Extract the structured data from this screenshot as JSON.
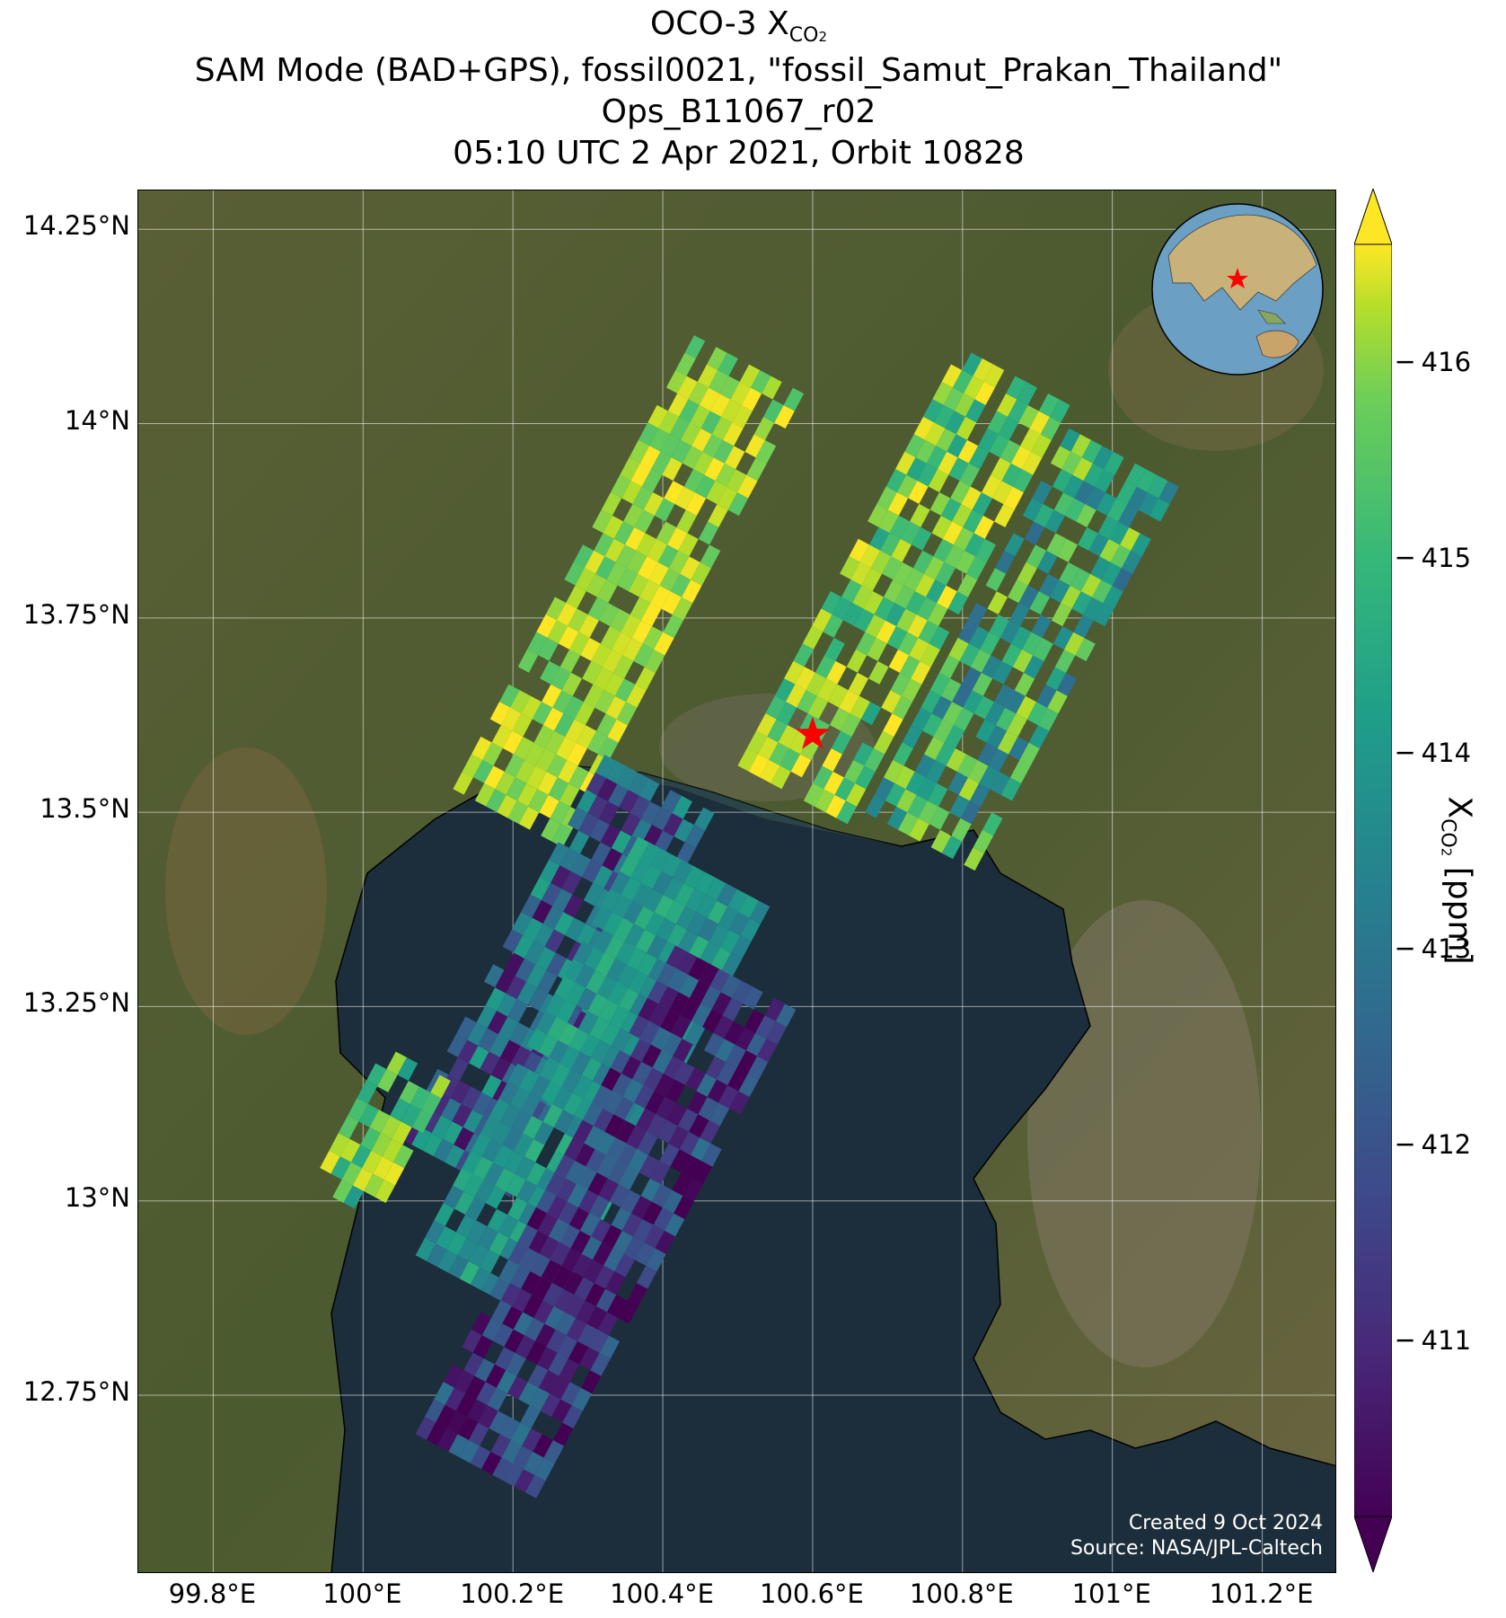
{
  "title": {
    "line1_prefix": "OCO-3 X",
    "line1_sub": "CO",
    "line1_sub2": "2",
    "line2": "SAM Mode (BAD+GPS), fossil0021, \"fossil_Samut_Prakan_Thailand\"",
    "line3": "Ops_B11067_r02",
    "line4": "05:10 UTC 2 Apr 2021, Orbit 10828"
  },
  "axes": {
    "lat_ticks": [
      "14.25°N",
      "14°N",
      "13.75°N",
      "13.5°N",
      "13.25°N",
      "13°N",
      "12.75°N"
    ],
    "lon_ticks": [
      "99.8°E",
      "100°E",
      "100.2°E",
      "100.4°E",
      "100.6°E",
      "100.8°E",
      "101°E",
      "101.2°E"
    ],
    "lat_range": [
      12.52,
      14.3
    ],
    "lon_range": [
      99.7,
      101.3
    ]
  },
  "colorbar": {
    "label_prefix": "X",
    "label_sub": "CO",
    "label_sub2": "2",
    "label_suffix": " [ppm]",
    "ticks": [
      "416",
      "415",
      "414",
      "413",
      "412",
      "411"
    ],
    "range": [
      410.1,
      416.6
    ],
    "colormap": "viridis",
    "extend": "both"
  },
  "target": {
    "name": "fossil_Samut_Prakan_Thailand",
    "lon": 100.6,
    "lat": 13.6,
    "marker": "red-star"
  },
  "credit": {
    "line1": "Created 9 Oct 2024",
    "line2": "Source: NASA/JPL-Caltech"
  },
  "colors": {
    "star": "#ff0000",
    "sea": "#1b2c3a",
    "land": "#4f5a32"
  }
}
